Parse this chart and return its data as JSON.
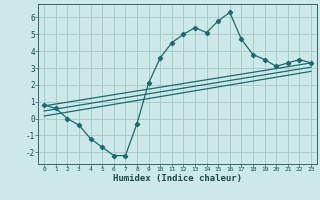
{
  "xlabel": "Humidex (Indice chaleur)",
  "background_color": "#cce8e8",
  "grid_color": "#aacccc",
  "line_color": "#1a6b6b",
  "xlim": [
    -0.5,
    23.5
  ],
  "ylim": [
    -2.7,
    6.8
  ],
  "xticks": [
    0,
    1,
    2,
    3,
    4,
    5,
    6,
    7,
    8,
    9,
    10,
    11,
    12,
    13,
    14,
    15,
    16,
    17,
    18,
    19,
    20,
    21,
    22,
    23
  ],
  "yticks": [
    -2,
    -1,
    0,
    1,
    2,
    3,
    4,
    5,
    6
  ],
  "line1_x": [
    0,
    1,
    2,
    3,
    4,
    5,
    6,
    7,
    8,
    9,
    10,
    11,
    12,
    13,
    14,
    15,
    16,
    17,
    18,
    19,
    20,
    21,
    22,
    23
  ],
  "line1_y": [
    0.8,
    0.6,
    0.0,
    -0.4,
    -1.2,
    -1.7,
    -2.2,
    -2.2,
    -0.3,
    2.1,
    3.6,
    4.5,
    5.0,
    5.4,
    5.1,
    5.8,
    6.3,
    4.7,
    3.8,
    3.5,
    3.1,
    3.3,
    3.5,
    3.3
  ],
  "line2_x": [
    0,
    23
  ],
  "line2_y": [
    0.75,
    3.3
  ],
  "line3_x": [
    0,
    23
  ],
  "line3_y": [
    0.45,
    3.05
  ],
  "line4_x": [
    0,
    23
  ],
  "line4_y": [
    0.15,
    2.8
  ]
}
